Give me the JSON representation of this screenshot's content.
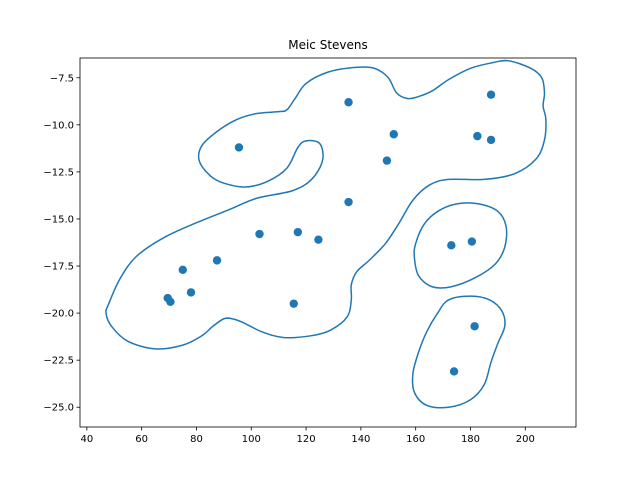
{
  "chart_data": {
    "type": "scatter",
    "title": "Meic Stevens",
    "xlabel": "",
    "ylabel": "",
    "xlim": [
      37.5,
      218.5
    ],
    "ylim": [
      -26.05,
      -6.45
    ],
    "xticks": [
      40,
      60,
      80,
      100,
      120,
      140,
      160,
      180,
      200
    ],
    "yticks": [
      -7.5,
      -10.0,
      -12.5,
      -15.0,
      -17.5,
      -20.0,
      -22.5,
      -25.0
    ],
    "grid": false,
    "color": "#1f77b4",
    "points": [
      [
        69.5,
        -19.2
      ],
      [
        70.5,
        -19.4
      ],
      [
        75.0,
        -17.7
      ],
      [
        78.0,
        -18.9
      ],
      [
        87.5,
        -17.2
      ],
      [
        95.5,
        -11.2
      ],
      [
        103.0,
        -15.8
      ],
      [
        115.5,
        -19.5
      ],
      [
        117.0,
        -15.7
      ],
      [
        124.5,
        -16.1
      ],
      [
        135.5,
        -8.8
      ],
      [
        135.5,
        -14.1
      ],
      [
        149.5,
        -11.9
      ],
      [
        152.0,
        -10.5
      ],
      [
        173.0,
        -16.4
      ],
      [
        174.0,
        -23.1
      ],
      [
        180.5,
        -16.2
      ],
      [
        181.5,
        -20.7
      ],
      [
        182.5,
        -10.6
      ],
      [
        187.5,
        -10.8
      ],
      [
        187.5,
        -8.4
      ]
    ],
    "contours": [
      [
        [
          48,
          -19.5
        ],
        [
          52,
          -18.2
        ],
        [
          58,
          -17.0
        ],
        [
          68,
          -16.0
        ],
        [
          80,
          -15.2
        ],
        [
          92,
          -14.5
        ],
        [
          102,
          -13.9
        ],
        [
          115,
          -13.5
        ],
        [
          122,
          -12.9
        ],
        [
          126,
          -11.9
        ],
        [
          125,
          -11.0
        ],
        [
          120,
          -10.85
        ],
        [
          117,
          -11.2
        ],
        [
          113,
          -12.3
        ],
        [
          106,
          -13.0
        ],
        [
          98,
          -13.3
        ],
        [
          90,
          -13.1
        ],
        [
          85,
          -12.7
        ],
        [
          81,
          -11.9
        ],
        [
          82,
          -11.1
        ],
        [
          88,
          -10.3
        ],
        [
          95,
          -9.7
        ],
        [
          102,
          -9.4
        ],
        [
          110,
          -9.3
        ],
        [
          113,
          -9.2
        ],
        [
          116,
          -8.6
        ],
        [
          120,
          -7.8
        ],
        [
          128,
          -7.2
        ],
        [
          138,
          -6.95
        ],
        [
          145,
          -7.0
        ],
        [
          150,
          -7.5
        ],
        [
          153,
          -8.3
        ],
        [
          157,
          -8.6
        ],
        [
          161,
          -8.5
        ],
        [
          166,
          -8.2
        ],
        [
          172,
          -7.6
        ],
        [
          180,
          -7.0
        ],
        [
          188,
          -6.7
        ],
        [
          194,
          -6.6
        ],
        [
          202,
          -7.0
        ],
        [
          206,
          -7.5
        ],
        [
          207,
          -8.3
        ],
        [
          206.5,
          -9.0
        ],
        [
          207.5,
          -9.7
        ],
        [
          207,
          -10.8
        ],
        [
          204,
          -11.8
        ],
        [
          196,
          -12.6
        ],
        [
          185,
          -12.9
        ],
        [
          172,
          -12.9
        ],
        [
          165,
          -13.2
        ],
        [
          159,
          -14.0
        ],
        [
          154,
          -15.2
        ],
        [
          149,
          -16.3
        ],
        [
          143,
          -17.2
        ],
        [
          138.5,
          -17.8
        ],
        [
          136.5,
          -18.5
        ],
        [
          136.5,
          -19.3
        ],
        [
          135,
          -20.2
        ],
        [
          129,
          -20.9
        ],
        [
          122,
          -21.2
        ],
        [
          112,
          -21.3
        ],
        [
          104,
          -21.0
        ],
        [
          97,
          -20.5
        ],
        [
          93,
          -20.3
        ],
        [
          90,
          -20.3
        ],
        [
          86,
          -20.7
        ],
        [
          82,
          -21.2
        ],
        [
          75,
          -21.7
        ],
        [
          65,
          -21.9
        ],
        [
          55,
          -21.5
        ],
        [
          49,
          -20.7
        ],
        [
          47,
          -20.0
        ],
        [
          48,
          -19.5
        ]
      ],
      [
        [
          160,
          -16.3
        ],
        [
          163,
          -15.3
        ],
        [
          168,
          -14.6
        ],
        [
          175,
          -14.2
        ],
        [
          183,
          -14.2
        ],
        [
          190,
          -14.6
        ],
        [
          193,
          -15.4
        ],
        [
          192.5,
          -16.5
        ],
        [
          189,
          -17.4
        ],
        [
          182,
          -18.1
        ],
        [
          173,
          -18.6
        ],
        [
          166,
          -18.6
        ],
        [
          161,
          -18.0
        ],
        [
          159.5,
          -17.0
        ],
        [
          160,
          -16.3
        ]
      ],
      [
        [
          164,
          -21.0
        ],
        [
          168,
          -20.0
        ],
        [
          172,
          -19.3
        ],
        [
          180,
          -19.1
        ],
        [
          187,
          -19.3
        ],
        [
          191.5,
          -19.9
        ],
        [
          192.5,
          -20.7
        ],
        [
          190,
          -21.6
        ],
        [
          187.5,
          -22.6
        ],
        [
          185,
          -23.8
        ],
        [
          180,
          -24.6
        ],
        [
          172,
          -25.0
        ],
        [
          164,
          -24.9
        ],
        [
          159.5,
          -24.2
        ],
        [
          159,
          -23.2
        ],
        [
          161,
          -22.1
        ],
        [
          164,
          -21.0
        ]
      ]
    ]
  }
}
